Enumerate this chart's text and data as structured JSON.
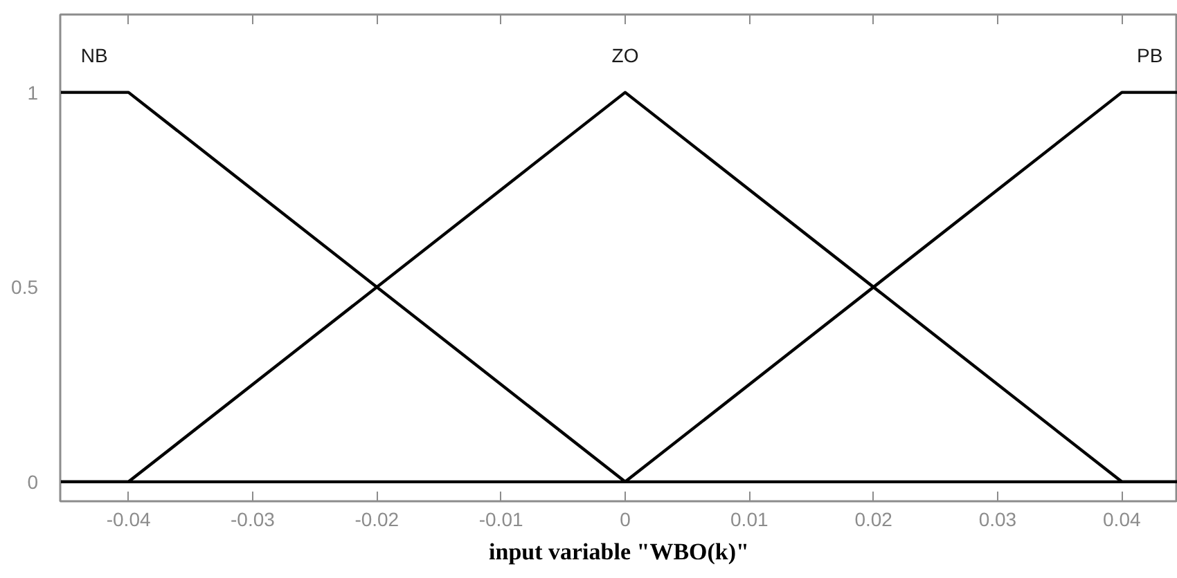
{
  "chart_data": {
    "type": "line",
    "xlabel": "input variable \"WBO(k)\"",
    "xlim": [
      -0.0455,
      0.0445
    ],
    "ylim": [
      -0.05,
      1.2
    ],
    "xticks": [
      -0.04,
      -0.03,
      -0.02,
      -0.01,
      0,
      0.01,
      0.02,
      0.03,
      0.04
    ],
    "yticks": [
      0,
      0.5,
      1
    ],
    "grid": false,
    "legend": false,
    "marker": "none",
    "line_style": "solid",
    "series": [
      {
        "name": "NB",
        "color": "#000000",
        "x": [
          -0.0455,
          -0.04,
          0,
          0.0445
        ],
        "values": [
          1,
          1,
          0,
          0
        ]
      },
      {
        "name": "ZO",
        "color": "#000000",
        "x": [
          -0.0455,
          -0.04,
          0,
          0.04,
          0.0445
        ],
        "values": [
          0,
          0,
          1,
          0,
          0
        ]
      },
      {
        "name": "PB",
        "color": "#000000",
        "x": [
          -0.0455,
          0,
          0.04,
          0.0445
        ],
        "values": [
          0,
          0,
          1,
          1
        ]
      }
    ]
  }
}
